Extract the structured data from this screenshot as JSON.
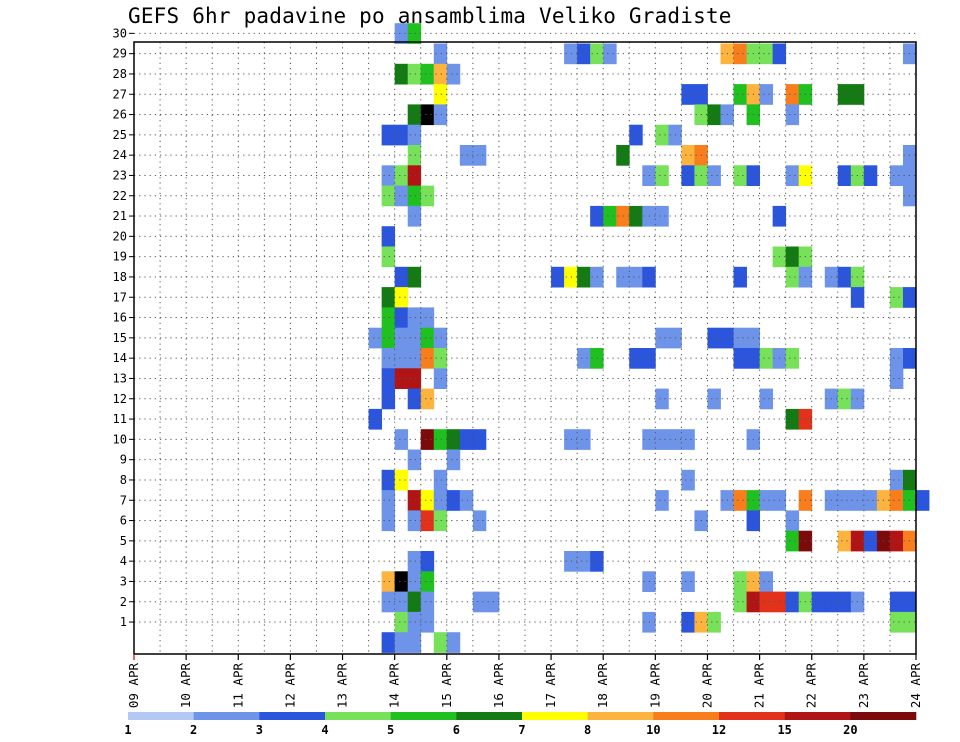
{
  "chart_data": {
    "type": "heatmap",
    "title": "GEFS 6hr padavine po ansamblima Veliko Gradiste",
    "xlabel": "",
    "ylabel": "",
    "x_tick_labels": [
      "09 APR",
      "10 APR",
      "11 APR",
      "12 APR",
      "13 APR",
      "14 APR",
      "15 APR",
      "16 APR",
      "17 APR",
      "18 APR",
      "19 APR",
      "20 APR",
      "21 APR",
      "22 APR",
      "23 APR",
      "24 APR"
    ],
    "y_tick_labels": [
      "1",
      "2",
      "3",
      "4",
      "5",
      "6",
      "7",
      "8",
      "9",
      "10",
      "11",
      "12",
      "13",
      "14",
      "15",
      "16",
      "17",
      "18",
      "19",
      "20",
      "21",
      "22",
      "23",
      "24",
      "25",
      "26",
      "27",
      "28",
      "29",
      "30"
    ],
    "x_range_days": [
      0,
      15
    ],
    "steps_per_day": 4,
    "ensemble_members": [
      1,
      30
    ],
    "grid": "dotted",
    "colorbar": {
      "position": "bottom",
      "labels": [
        "1",
        "2",
        "3",
        "4",
        "5",
        "6",
        "7",
        "8",
        "10",
        "12",
        "15",
        "20"
      ],
      "colors": [
        "#b4c8f5",
        "#6e94ea",
        "#2b55dd",
        "#78e15a",
        "#20c021",
        "#137a14",
        "#ffff00",
        "#fcb43e",
        "#f87d1c",
        "#e3321c",
        "#b01414",
        "#7c0a0a"
      ]
    },
    "cells": [
      [
        30,
        20,
        1
      ],
      [
        30,
        21,
        4
      ],
      [
        29,
        23,
        1
      ],
      [
        29,
        33,
        1
      ],
      [
        29,
        34,
        2
      ],
      [
        29,
        35,
        3
      ],
      [
        29,
        36,
        1
      ],
      [
        29,
        45,
        7
      ],
      [
        29,
        46,
        8
      ],
      [
        29,
        47,
        3
      ],
      [
        29,
        48,
        3
      ],
      [
        29,
        49,
        2
      ],
      [
        29,
        59,
        1
      ],
      [
        28,
        20,
        5
      ],
      [
        28,
        21,
        3
      ],
      [
        28,
        22,
        4
      ],
      [
        28,
        23,
        7
      ],
      [
        28,
        24,
        1
      ],
      [
        27,
        23,
        6
      ],
      [
        27,
        42,
        2
      ],
      [
        27,
        43,
        2
      ],
      [
        27,
        46,
        4
      ],
      [
        27,
        47,
        7
      ],
      [
        27,
        48,
        1
      ],
      [
        27,
        50,
        8
      ],
      [
        27,
        51,
        4
      ],
      [
        27,
        54,
        5
      ],
      [
        27,
        55,
        5
      ],
      [
        26,
        21,
        5
      ],
      [
        26,
        22,
        12
      ],
      [
        26,
        23,
        1
      ],
      [
        26,
        43,
        3
      ],
      [
        26,
        44,
        5
      ],
      [
        26,
        45,
        1
      ],
      [
        26,
        47,
        4
      ],
      [
        26,
        50,
        1
      ],
      [
        25,
        19,
        2
      ],
      [
        25,
        20,
        2
      ],
      [
        25,
        21,
        1
      ],
      [
        25,
        38,
        2
      ],
      [
        25,
        40,
        3
      ],
      [
        25,
        41,
        1
      ],
      [
        24,
        21,
        3
      ],
      [
        24,
        25,
        1
      ],
      [
        24,
        26,
        1
      ],
      [
        24,
        37,
        5
      ],
      [
        24,
        42,
        7
      ],
      [
        24,
        43,
        8
      ],
      [
        24,
        59,
        1
      ],
      [
        23,
        19,
        1
      ],
      [
        23,
        20,
        3
      ],
      [
        23,
        21,
        10
      ],
      [
        23,
        39,
        1
      ],
      [
        23,
        40,
        3
      ],
      [
        23,
        42,
        2
      ],
      [
        23,
        43,
        3
      ],
      [
        23,
        44,
        1
      ],
      [
        23,
        46,
        3
      ],
      [
        23,
        47,
        2
      ],
      [
        23,
        50,
        1
      ],
      [
        23,
        51,
        6
      ],
      [
        23,
        54,
        2
      ],
      [
        23,
        55,
        3
      ],
      [
        23,
        56,
        2
      ],
      [
        23,
        58,
        1
      ],
      [
        23,
        59,
        1
      ],
      [
        22,
        19,
        3
      ],
      [
        22,
        20,
        1
      ],
      [
        22,
        21,
        4
      ],
      [
        22,
        22,
        3
      ],
      [
        22,
        59,
        1
      ],
      [
        21,
        21,
        1
      ],
      [
        21,
        35,
        2
      ],
      [
        21,
        36,
        4
      ],
      [
        21,
        37,
        8
      ],
      [
        21,
        38,
        5
      ],
      [
        21,
        39,
        1
      ],
      [
        21,
        40,
        1
      ],
      [
        21,
        49,
        2
      ],
      [
        20,
        19,
        2
      ],
      [
        19,
        19,
        3
      ],
      [
        19,
        49,
        3
      ],
      [
        19,
        50,
        5
      ],
      [
        19,
        51,
        3
      ],
      [
        18,
        20,
        2
      ],
      [
        18,
        21,
        5
      ],
      [
        18,
        32,
        2
      ],
      [
        18,
        33,
        6
      ],
      [
        18,
        34,
        5
      ],
      [
        18,
        35,
        1
      ],
      [
        18,
        37,
        1
      ],
      [
        18,
        38,
        1
      ],
      [
        18,
        39,
        2
      ],
      [
        18,
        46,
        2
      ],
      [
        18,
        50,
        3
      ],
      [
        18,
        51,
        1
      ],
      [
        18,
        53,
        1
      ],
      [
        18,
        54,
        2
      ],
      [
        18,
        55,
        3
      ],
      [
        17,
        19,
        5
      ],
      [
        17,
        20,
        6
      ],
      [
        17,
        55,
        2
      ],
      [
        17,
        58,
        3
      ],
      [
        17,
        59,
        2
      ],
      [
        16,
        19,
        4
      ],
      [
        16,
        20,
        2
      ],
      [
        16,
        21,
        1
      ],
      [
        16,
        22,
        1
      ],
      [
        15,
        18,
        1
      ],
      [
        15,
        19,
        4
      ],
      [
        15,
        20,
        1
      ],
      [
        15,
        21,
        1
      ],
      [
        15,
        22,
        4
      ],
      [
        15,
        23,
        1
      ],
      [
        15,
        40,
        1
      ],
      [
        15,
        41,
        1
      ],
      [
        15,
        44,
        2
      ],
      [
        15,
        45,
        2
      ],
      [
        15,
        46,
        1
      ],
      [
        15,
        47,
        1
      ],
      [
        14,
        19,
        1
      ],
      [
        14,
        20,
        1
      ],
      [
        14,
        21,
        1
      ],
      [
        14,
        22,
        8
      ],
      [
        14,
        23,
        3
      ],
      [
        14,
        34,
        1
      ],
      [
        14,
        35,
        4
      ],
      [
        14,
        38,
        2
      ],
      [
        14,
        39,
        2
      ],
      [
        14,
        46,
        2
      ],
      [
        14,
        47,
        2
      ],
      [
        14,
        48,
        3
      ],
      [
        14,
        49,
        1
      ],
      [
        14,
        50,
        3
      ],
      [
        14,
        58,
        1
      ],
      [
        14,
        59,
        2
      ],
      [
        13,
        19,
        2
      ],
      [
        13,
        20,
        10
      ],
      [
        13,
        21,
        10
      ],
      [
        13,
        23,
        1
      ],
      [
        13,
        58,
        1
      ],
      [
        12,
        19,
        2
      ],
      [
        12,
        21,
        2
      ],
      [
        12,
        22,
        7
      ],
      [
        12,
        40,
        1
      ],
      [
        12,
        44,
        1
      ],
      [
        12,
        48,
        1
      ],
      [
        12,
        53,
        1
      ],
      [
        12,
        54,
        3
      ],
      [
        12,
        55,
        1
      ],
      [
        11,
        18,
        2
      ],
      [
        11,
        50,
        5
      ],
      [
        11,
        51,
        9
      ],
      [
        10,
        20,
        1
      ],
      [
        10,
        22,
        11
      ],
      [
        10,
        23,
        4
      ],
      [
        10,
        24,
        5
      ],
      [
        10,
        25,
        2
      ],
      [
        10,
        26,
        2
      ],
      [
        10,
        33,
        1
      ],
      [
        10,
        34,
        1
      ],
      [
        10,
        39,
        1
      ],
      [
        10,
        40,
        1
      ],
      [
        10,
        41,
        1
      ],
      [
        10,
        42,
        1
      ],
      [
        10,
        47,
        1
      ],
      [
        9,
        21,
        1
      ],
      [
        9,
        24,
        1
      ],
      [
        8,
        19,
        2
      ],
      [
        8,
        20,
        6
      ],
      [
        8,
        23,
        1
      ],
      [
        8,
        42,
        1
      ],
      [
        8,
        58,
        1
      ],
      [
        8,
        59,
        5
      ],
      [
        7,
        19,
        1
      ],
      [
        7,
        21,
        10
      ],
      [
        7,
        22,
        6
      ],
      [
        7,
        23,
        1
      ],
      [
        7,
        24,
        2
      ],
      [
        7,
        25,
        1
      ],
      [
        7,
        40,
        1
      ],
      [
        7,
        45,
        1
      ],
      [
        7,
        46,
        8
      ],
      [
        7,
        47,
        4
      ],
      [
        7,
        48,
        1
      ],
      [
        7,
        49,
        1
      ],
      [
        7,
        51,
        8
      ],
      [
        7,
        53,
        1
      ],
      [
        7,
        54,
        1
      ],
      [
        7,
        55,
        1
      ],
      [
        7,
        56,
        1
      ],
      [
        7,
        57,
        7
      ],
      [
        7,
        58,
        8
      ],
      [
        7,
        59,
        4
      ],
      [
        7,
        60,
        2
      ],
      [
        6,
        19,
        1
      ],
      [
        6,
        21,
        1
      ],
      [
        6,
        22,
        9
      ],
      [
        6,
        23,
        3
      ],
      [
        6,
        26,
        1
      ],
      [
        6,
        43,
        1
      ],
      [
        6,
        47,
        2
      ],
      [
        6,
        50,
        1
      ],
      [
        5,
        50,
        4
      ],
      [
        5,
        51,
        11
      ],
      [
        5,
        54,
        7
      ],
      [
        5,
        55,
        10
      ],
      [
        5,
        56,
        2
      ],
      [
        5,
        57,
        11
      ],
      [
        5,
        58,
        10
      ],
      [
        5,
        59,
        8
      ],
      [
        4,
        21,
        1
      ],
      [
        4,
        22,
        2
      ],
      [
        4,
        33,
        1
      ],
      [
        4,
        34,
        1
      ],
      [
        4,
        35,
        2
      ],
      [
        3,
        19,
        7
      ],
      [
        3,
        20,
        12
      ],
      [
        3,
        21,
        1
      ],
      [
        3,
        22,
        4
      ],
      [
        3,
        39,
        1
      ],
      [
        3,
        42,
        1
      ],
      [
        3,
        46,
        3
      ],
      [
        3,
        47,
        7
      ],
      [
        3,
        48,
        1
      ],
      [
        2,
        19,
        1
      ],
      [
        2,
        20,
        1
      ],
      [
        2,
        21,
        5
      ],
      [
        2,
        22,
        1
      ],
      [
        2,
        26,
        1
      ],
      [
        2,
        27,
        1
      ],
      [
        2,
        46,
        3
      ],
      [
        2,
        47,
        10
      ],
      [
        2,
        48,
        9
      ],
      [
        2,
        49,
        9
      ],
      [
        2,
        50,
        2
      ],
      [
        2,
        51,
        3
      ],
      [
        2,
        52,
        2
      ],
      [
        2,
        53,
        2
      ],
      [
        2,
        54,
        2
      ],
      [
        2,
        55,
        1
      ],
      [
        2,
        58,
        2
      ],
      [
        2,
        59,
        2
      ],
      [
        1,
        20,
        3
      ],
      [
        1,
        21,
        1
      ],
      [
        1,
        22,
        1
      ],
      [
        1,
        39,
        1
      ],
      [
        1,
        42,
        2
      ],
      [
        1,
        43,
        7
      ],
      [
        1,
        44,
        3
      ],
      [
        1,
        58,
        3
      ],
      [
        1,
        59,
        3
      ],
      [
        0,
        19,
        2
      ],
      [
        0,
        20,
        1
      ],
      [
        0,
        21,
        1
      ],
      [
        0,
        23,
        3
      ],
      [
        0,
        24,
        1
      ]
    ]
  }
}
